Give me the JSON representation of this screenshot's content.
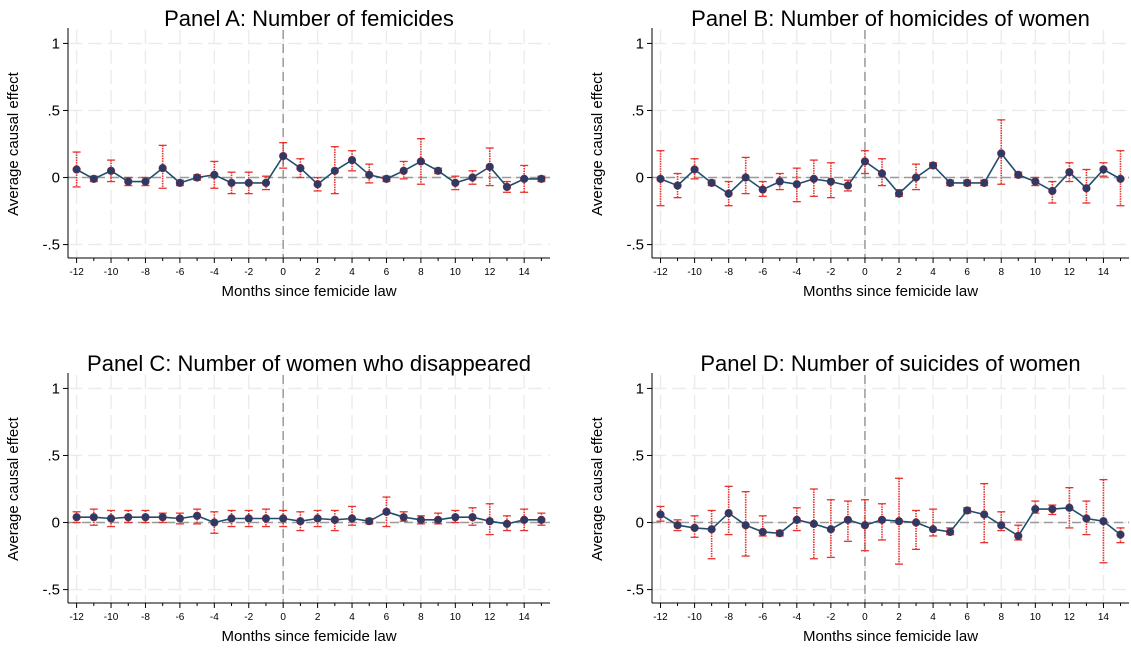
{
  "figure": {
    "x_label": "Months since femicide law",
    "y_label": "Average causal effect",
    "x_tick_labels": [
      "-12",
      "-10",
      "-8",
      "-6",
      "-4",
      "-2",
      "0",
      "2",
      "4",
      "6",
      "8",
      "10",
      "12",
      "14"
    ],
    "y_tick_labels": [
      "-.5",
      "0",
      ".5",
      "1"
    ]
  },
  "colors": {
    "line": "#1f4e6e",
    "point": "#2b3a67",
    "ci": "#e8322d",
    "zero_line": "#9a9a9a",
    "grid": "#ebebeb",
    "axis": "#000000"
  },
  "chart_data": [
    {
      "type": "line",
      "title": "Panel A: Number of femicides",
      "xlabel": "Months since femicide law",
      "ylabel": "Average causal effect",
      "xlim": [
        -12.5,
        15.5
      ],
      "ylim": [
        -0.6,
        1.1
      ],
      "grid": true,
      "event_line_x": 0,
      "x": [
        -12,
        -11,
        -10,
        -9,
        -8,
        -7,
        -6,
        -5,
        -4,
        -3,
        -2,
        -1,
        0,
        1,
        2,
        3,
        4,
        5,
        6,
        7,
        8,
        9,
        10,
        11,
        12,
        13,
        14,
        15
      ],
      "estimate": [
        0.06,
        -0.01,
        0.05,
        -0.03,
        -0.03,
        0.07,
        -0.04,
        0.0,
        0.02,
        -0.04,
        -0.04,
        -0.04,
        0.16,
        0.07,
        -0.05,
        0.05,
        0.13,
        0.02,
        -0.01,
        0.05,
        0.12,
        0.05,
        -0.04,
        0.0,
        0.08,
        -0.07,
        -0.01,
        -0.01
      ],
      "ci_low": [
        -0.07,
        -0.03,
        -0.03,
        -0.06,
        -0.06,
        -0.08,
        -0.06,
        -0.02,
        -0.08,
        -0.12,
        -0.12,
        -0.09,
        0.07,
        0.0,
        -0.1,
        -0.12,
        0.05,
        -0.04,
        -0.03,
        -0.01,
        -0.05,
        0.03,
        -0.09,
        -0.05,
        -0.06,
        -0.11,
        -0.11,
        -0.03
      ],
      "ci_high": [
        0.19,
        0.01,
        0.13,
        0.0,
        0.0,
        0.24,
        -0.02,
        0.02,
        0.12,
        0.04,
        0.04,
        0.01,
        0.26,
        0.14,
        0.0,
        0.23,
        0.2,
        0.1,
        0.01,
        0.12,
        0.29,
        0.07,
        0.01,
        0.05,
        0.22,
        -0.03,
        0.09,
        0.01
      ]
    },
    {
      "type": "line",
      "title": "Panel B: Number of homicides of women",
      "xlabel": "Months since femicide law",
      "ylabel": "Average causal effect",
      "xlim": [
        -12.5,
        15.5
      ],
      "ylim": [
        -0.6,
        1.1
      ],
      "grid": true,
      "event_line_x": 0,
      "x": [
        -12,
        -11,
        -10,
        -9,
        -8,
        -7,
        -6,
        -5,
        -4,
        -3,
        -2,
        -1,
        0,
        1,
        2,
        3,
        4,
        5,
        6,
        7,
        8,
        9,
        10,
        11,
        12,
        13,
        14,
        15
      ],
      "estimate": [
        -0.01,
        -0.06,
        0.06,
        -0.04,
        -0.12,
        0.0,
        -0.09,
        -0.03,
        -0.05,
        -0.01,
        -0.03,
        -0.06,
        0.12,
        0.03,
        -0.12,
        0.0,
        0.09,
        -0.04,
        -0.04,
        -0.04,
        0.18,
        0.02,
        -0.03,
        -0.1,
        0.04,
        -0.08,
        0.06,
        -0.01
      ],
      "ci_low": [
        -0.21,
        -0.15,
        -0.01,
        -0.06,
        -0.21,
        -0.12,
        -0.14,
        -0.09,
        -0.18,
        -0.14,
        -0.15,
        -0.1,
        0.03,
        -0.06,
        -0.14,
        -0.09,
        0.07,
        -0.06,
        -0.06,
        -0.06,
        -0.05,
        0.0,
        -0.06,
        -0.19,
        -0.03,
        -0.19,
        0.01,
        -0.21
      ],
      "ci_high": [
        0.2,
        0.03,
        0.14,
        -0.02,
        -0.03,
        0.15,
        -0.03,
        0.03,
        0.07,
        0.13,
        0.11,
        -0.02,
        0.2,
        0.14,
        -0.09,
        0.1,
        0.11,
        -0.02,
        -0.02,
        -0.02,
        0.43,
        0.04,
        0.0,
        -0.03,
        0.11,
        0.06,
        0.11,
        0.2
      ]
    },
    {
      "type": "line",
      "title": "Panel C: Number of women who disappeared",
      "xlabel": "Months since femicide law",
      "ylabel": "Average causal effect",
      "xlim": [
        -12.5,
        15.5
      ],
      "ylim": [
        -0.6,
        1.1
      ],
      "grid": true,
      "event_line_x": 0,
      "x": [
        -12,
        -11,
        -10,
        -9,
        -8,
        -7,
        -6,
        -5,
        -4,
        -3,
        -2,
        -1,
        0,
        1,
        2,
        3,
        4,
        5,
        6,
        7,
        8,
        9,
        10,
        11,
        12,
        13,
        14,
        15
      ],
      "estimate": [
        0.04,
        0.04,
        0.03,
        0.04,
        0.04,
        0.04,
        0.03,
        0.05,
        0.0,
        0.03,
        0.03,
        0.03,
        0.03,
        0.01,
        0.03,
        0.02,
        0.03,
        0.01,
        0.08,
        0.04,
        0.02,
        0.02,
        0.04,
        0.04,
        0.01,
        -0.01,
        0.02,
        0.02
      ],
      "ci_low": [
        0.0,
        -0.02,
        -0.03,
        0.0,
        0.0,
        0.0,
        -0.01,
        -0.01,
        -0.08,
        -0.03,
        -0.03,
        -0.03,
        -0.03,
        -0.06,
        -0.03,
        -0.06,
        -0.02,
        -0.01,
        -0.03,
        0.01,
        -0.01,
        -0.01,
        0.0,
        -0.02,
        -0.09,
        -0.06,
        -0.06,
        -0.02
      ],
      "ci_high": [
        0.08,
        0.1,
        0.09,
        0.09,
        0.09,
        0.07,
        0.07,
        0.1,
        0.08,
        0.09,
        0.09,
        0.1,
        0.09,
        0.08,
        0.09,
        0.09,
        0.12,
        0.03,
        0.19,
        0.08,
        0.05,
        0.07,
        0.09,
        0.11,
        0.14,
        0.05,
        0.1,
        0.07
      ]
    },
    {
      "type": "line",
      "title": "Panel D: Number of suicides of women",
      "xlabel": "Months since femicide law",
      "ylabel": "Average causal effect",
      "xlim": [
        -12.5,
        15.5
      ],
      "ylim": [
        -0.6,
        1.1
      ],
      "grid": true,
      "event_line_x": 0,
      "x": [
        -12,
        -11,
        -10,
        -9,
        -8,
        -7,
        -6,
        -5,
        -4,
        -3,
        -2,
        -1,
        0,
        1,
        2,
        3,
        4,
        5,
        6,
        7,
        8,
        9,
        10,
        11,
        12,
        13,
        14,
        15
      ],
      "estimate": [
        0.06,
        -0.02,
        -0.04,
        -0.05,
        0.07,
        -0.02,
        -0.07,
        -0.08,
        0.02,
        -0.01,
        -0.05,
        0.02,
        -0.02,
        0.02,
        0.01,
        0.0,
        -0.05,
        -0.07,
        0.09,
        0.06,
        -0.02,
        -0.1,
        0.1,
        0.1,
        0.11,
        0.03,
        0.01,
        -0.09
      ],
      "ci_low": [
        0.01,
        -0.06,
        -0.11,
        -0.27,
        -0.09,
        -0.25,
        -0.1,
        -0.1,
        -0.06,
        -0.27,
        -0.26,
        -0.14,
        -0.21,
        -0.13,
        -0.31,
        -0.2,
        -0.1,
        -0.09,
        0.07,
        -0.15,
        -0.06,
        -0.13,
        0.07,
        0.06,
        -0.04,
        -0.09,
        -0.3,
        -0.15
      ],
      "ci_high": [
        0.12,
        0.02,
        0.05,
        0.09,
        0.27,
        0.23,
        0.05,
        -0.06,
        0.11,
        0.25,
        0.17,
        0.16,
        0.17,
        0.14,
        0.33,
        0.09,
        0.1,
        -0.04,
        0.11,
        0.29,
        0.08,
        -0.02,
        0.16,
        0.13,
        0.26,
        0.16,
        0.32,
        -0.04
      ]
    }
  ]
}
